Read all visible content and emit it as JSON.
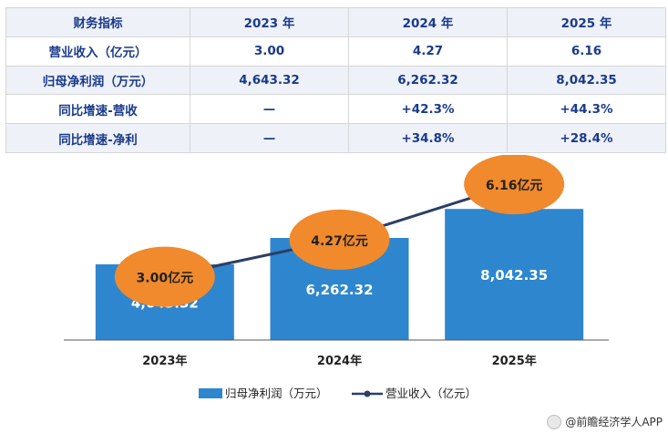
{
  "table": {
    "headers": [
      "财务指标",
      "2023 年",
      "2024 年",
      "2025 年"
    ],
    "rows": [
      [
        "营业收入（亿元）",
        "3.00",
        "4.27",
        "6.16"
      ],
      [
        "归母净利润（万元）",
        "4,643.32",
        "6,262.32",
        "8,042.35"
      ],
      [
        "同比增速-营收",
        "—",
        "+42.3%",
        "+44.3%"
      ],
      [
        "同比增速-净利",
        "—",
        "+34.8%",
        "+28.4%"
      ]
    ]
  },
  "chart_data": {
    "type": "bar+line",
    "categories": [
      "2023年",
      "2024年",
      "2025年"
    ],
    "series": [
      {
        "name": "归母净利润（万元）",
        "type": "bar",
        "values": [
          4643.32,
          6262.32,
          8042.35
        ],
        "data_labels": [
          "4,643.32",
          "6,262.32",
          "8,042.35"
        ],
        "color": "#2e86cf"
      },
      {
        "name": "营业收入（亿元）",
        "type": "line",
        "values": [
          3.0,
          4.27,
          6.16
        ],
        "data_labels": [
          "3.00亿元",
          "4.27亿元",
          "6.16亿元"
        ],
        "color": "#2c3e63",
        "marker_color": "#f08a2c"
      }
    ],
    "bar_ylim": [
      0,
      9000
    ],
    "line_ylim": [
      0,
      8
    ],
    "legend_position": "bottom-center",
    "grid": false
  },
  "footer": {
    "source": "@前瞻经济学人APP"
  }
}
